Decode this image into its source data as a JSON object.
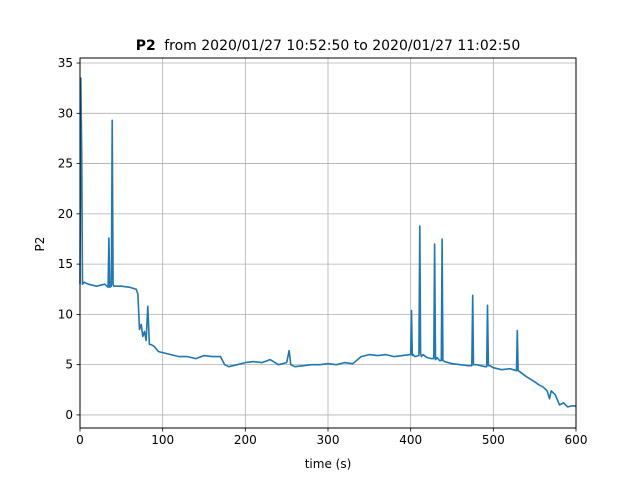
{
  "chart_data": {
    "type": "line",
    "title_bold": "P2",
    "title_rest": "from 2020/01/27 10:52:50 to 2020/01/27 11:02:50",
    "xlabel": "time (s)",
    "ylabel": "P2",
    "xlim": [
      0,
      600
    ],
    "ylim": [
      -1.3,
      35.5
    ],
    "xticks": [
      0,
      100,
      200,
      300,
      400,
      500,
      600
    ],
    "yticks": [
      0,
      5,
      10,
      15,
      20,
      25,
      30,
      35
    ],
    "grid": true,
    "line_color": "#1f77b4",
    "series": [
      {
        "x": [
          0,
          1,
          2,
          3,
          5,
          10,
          20,
          30,
          34,
          35,
          36,
          38,
          39,
          40,
          41,
          50,
          60,
          68,
          70,
          72,
          74,
          76,
          78,
          80,
          82,
          84,
          86,
          90,
          95,
          100,
          110,
          120,
          130,
          140,
          150,
          160,
          170,
          175,
          180,
          190,
          200,
          210,
          220,
          230,
          240,
          250,
          253,
          255,
          260,
          270,
          280,
          290,
          300,
          310,
          320,
          330,
          340,
          350,
          360,
          370,
          380,
          390,
          400,
          401,
          402,
          403,
          405,
          410,
          411,
          412,
          413,
          415,
          420,
          425,
          428,
          429,
          430,
          432,
          435,
          437,
          438,
          439,
          441,
          450,
          460,
          470,
          474,
          475,
          476,
          480,
          490,
          492,
          493,
          494,
          496,
          500,
          510,
          520,
          528,
          529,
          530,
          532,
          540,
          550,
          555,
          560,
          565,
          568,
          570,
          575,
          580,
          585,
          590,
          595,
          600
        ],
        "y": [
          13.0,
          33.5,
          26.0,
          13.0,
          13.2,
          13.0,
          12.8,
          13.0,
          12.7,
          17.6,
          12.7,
          12.8,
          29.3,
          13.0,
          12.8,
          12.8,
          12.7,
          12.5,
          12.0,
          8.5,
          9.0,
          7.8,
          8.3,
          7.4,
          10.8,
          7.0,
          7.0,
          6.8,
          6.3,
          6.2,
          6.0,
          5.8,
          5.8,
          5.6,
          5.9,
          5.8,
          5.8,
          5.0,
          4.8,
          5.0,
          5.2,
          5.3,
          5.2,
          5.5,
          5.0,
          5.2,
          6.4,
          5.0,
          4.8,
          4.9,
          5.0,
          5.0,
          5.1,
          5.0,
          5.2,
          5.1,
          5.8,
          6.0,
          5.9,
          6.0,
          5.8,
          5.9,
          6.0,
          10.4,
          5.9,
          6.0,
          5.8,
          5.9,
          18.8,
          6.1,
          5.8,
          6.0,
          5.7,
          5.6,
          5.6,
          17.0,
          5.5,
          5.7,
          5.4,
          5.4,
          17.5,
          5.4,
          5.3,
          5.1,
          5.0,
          4.9,
          4.9,
          11.9,
          5.0,
          5.0,
          4.8,
          4.8,
          10.9,
          4.9,
          4.9,
          4.7,
          4.5,
          4.6,
          4.4,
          8.4,
          4.4,
          4.3,
          3.8,
          3.3,
          3.0,
          2.8,
          2.4,
          1.6,
          2.4,
          2.0,
          1.0,
          1.2,
          0.8,
          0.9,
          0.9
        ]
      }
    ]
  }
}
